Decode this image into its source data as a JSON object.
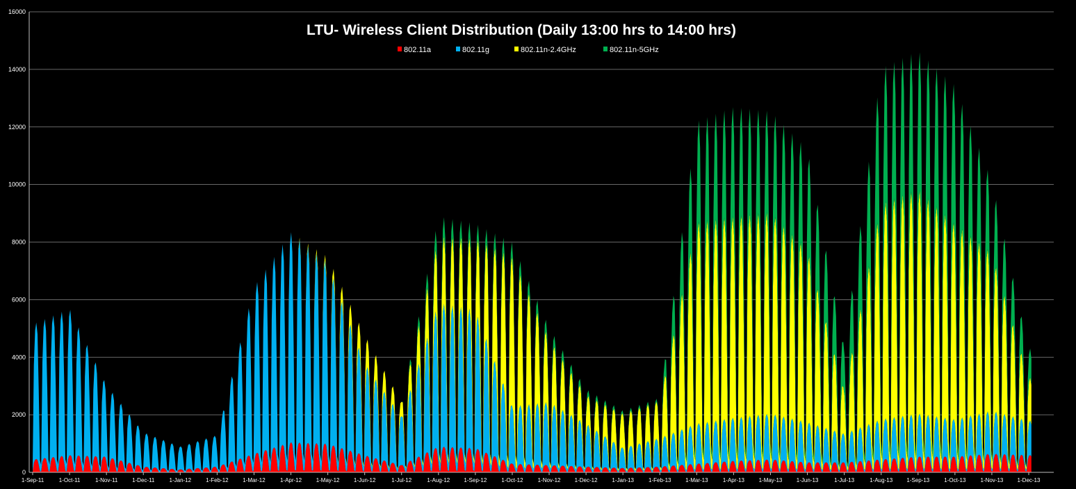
{
  "chart_data": {
    "type": "area",
    "stacked": true,
    "title": "LTU- Wireless Client Distribution (Daily 13:00 hrs to 14:00 hrs)",
    "xlabel": "",
    "ylabel": "",
    "ylim": [
      0,
      16000
    ],
    "yticks": [
      "0",
      "2000",
      "4000",
      "6000",
      "8000",
      "10000",
      "12000",
      "14000",
      "16000"
    ],
    "grid": true,
    "legend_position": "top-center",
    "background_color": "#000000",
    "categories": [
      "1-Sep-11",
      "1-Oct-11",
      "1-Nov-11",
      "1-Dec-11",
      "1-Jan-12",
      "1-Feb-12",
      "1-Mar-12",
      "1-Apr-12",
      "1-May-12",
      "1-Jun-12",
      "1-Jul-12",
      "1-Aug-12",
      "1-Sep-12",
      "1-Oct-12",
      "1-Nov-12",
      "1-Dec-12",
      "1-Jan-13",
      "1-Feb-13",
      "1-Mar-13",
      "1-Apr-13",
      "1-May-13",
      "1-Jun-13",
      "1-Jul-13",
      "1-Aug-13",
      "1-Sep-13",
      "1-Oct-13",
      "1-Nov-13",
      "1-Dec-13"
    ],
    "series": [
      {
        "name": "802.11a",
        "color": "#ff0000",
        "weekly_peak_by_month": [
          450,
          600,
          550,
          200,
          100,
          200,
          650,
          1050,
          1000,
          600,
          250,
          900,
          850,
          300,
          250,
          200,
          150,
          200,
          300,
          400,
          450,
          350,
          350,
          450,
          550,
          550,
          650,
          600
        ]
      },
      {
        "name": "802.11g",
        "color": "#00b0f0",
        "weekly_peak_by_month": [
          4700,
          5100,
          2500,
          1200,
          800,
          1100,
          5800,
          7300,
          6300,
          3200,
          1700,
          5000,
          4800,
          2000,
          2200,
          1500,
          700,
          1000,
          1400,
          1500,
          1600,
          1400,
          1000,
          1400,
          1500,
          1300,
          1500,
          1200
        ]
      },
      {
        "name": "802.11n-2.4GHz",
        "color": "#ffff00",
        "weekly_peak_by_month": [
          0,
          0,
          0,
          0,
          0,
          0,
          0,
          0,
          200,
          1000,
          500,
          2300,
          2500,
          5200,
          2200,
          1000,
          1200,
          1300,
          7000,
          7000,
          7000,
          6000,
          1500,
          7500,
          7800,
          6800,
          5500,
          1500
        ]
      },
      {
        "name": "802.11n-5GHz",
        "color": "#00b050",
        "weekly_peak_by_month": [
          0,
          0,
          0,
          0,
          0,
          0,
          0,
          0,
          0,
          0,
          0,
          700,
          500,
          500,
          400,
          200,
          100,
          100,
          3500,
          3800,
          3500,
          3500,
          1500,
          4700,
          4800,
          4800,
          2500,
          1000
        ]
      }
    ]
  }
}
